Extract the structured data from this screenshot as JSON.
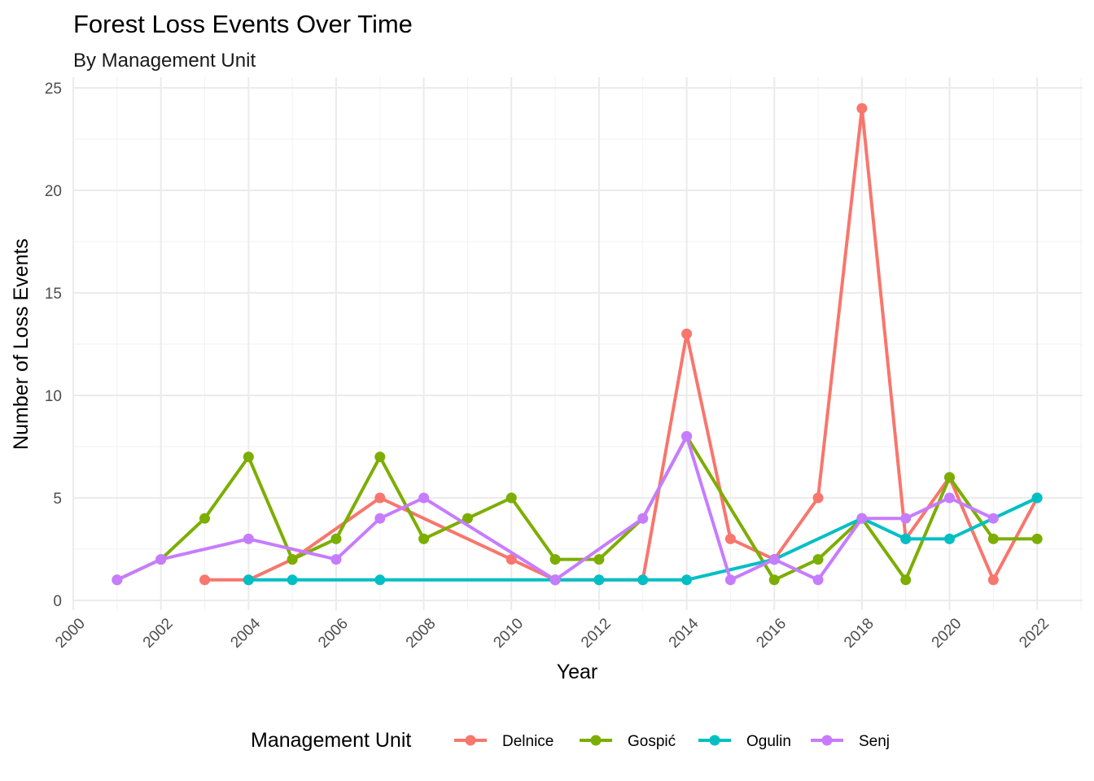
{
  "chart_data": {
    "type": "line",
    "title": "Forest Loss Events Over Time",
    "subtitle": "By Management Unit",
    "xlabel": "Year",
    "ylabel": "Number of Loss Events",
    "xlim": [
      2000,
      2023
    ],
    "ylim": [
      0,
      25
    ],
    "x_ticks": [
      2000,
      2002,
      2004,
      2006,
      2008,
      2010,
      2012,
      2014,
      2016,
      2018,
      2020,
      2022
    ],
    "y_ticks": [
      0,
      5,
      10,
      15,
      20,
      25
    ],
    "grid": true,
    "legend": {
      "title": "Management Unit",
      "position": "bottom"
    },
    "series": [
      {
        "name": "Delnice",
        "color": "#F8766D",
        "x": [
          2003,
          2004,
          2005,
          2007,
          2010,
          2011,
          2012,
          2013,
          2014,
          2015,
          2016,
          2017,
          2018,
          2019,
          2020,
          2021,
          2022
        ],
        "y": [
          1,
          1,
          2,
          5,
          2,
          1,
          1,
          1,
          13,
          3,
          2,
          5,
          24,
          3,
          6,
          1,
          5
        ]
      },
      {
        "name": "Gospić",
        "color": "#7CAE00",
        "x": [
          2001,
          2002,
          2003,
          2004,
          2005,
          2006,
          2007,
          2008,
          2009,
          2010,
          2011,
          2012,
          2013,
          2014,
          2016,
          2017,
          2018,
          2019,
          2020,
          2021,
          2022
        ],
        "y": [
          1,
          2,
          4,
          7,
          2,
          3,
          7,
          3,
          4,
          5,
          2,
          2,
          4,
          8,
          1,
          2,
          4,
          1,
          6,
          3,
          3
        ]
      },
      {
        "name": "Ogulin",
        "color": "#00BFC4",
        "x": [
          2004,
          2005,
          2007,
          2011,
          2012,
          2013,
          2014,
          2016,
          2018,
          2019,
          2020,
          2022
        ],
        "y": [
          1,
          1,
          1,
          1,
          1,
          1,
          1,
          2,
          4,
          3,
          3,
          5
        ]
      },
      {
        "name": "Senj",
        "color": "#C77CFF",
        "x": [
          2001,
          2002,
          2004,
          2006,
          2007,
          2008,
          2011,
          2013,
          2014,
          2015,
          2016,
          2017,
          2018,
          2019,
          2020,
          2021
        ],
        "y": [
          1,
          2,
          3,
          2,
          4,
          5,
          1,
          4,
          8,
          1,
          2,
          1,
          4,
          4,
          5,
          4
        ]
      }
    ]
  }
}
